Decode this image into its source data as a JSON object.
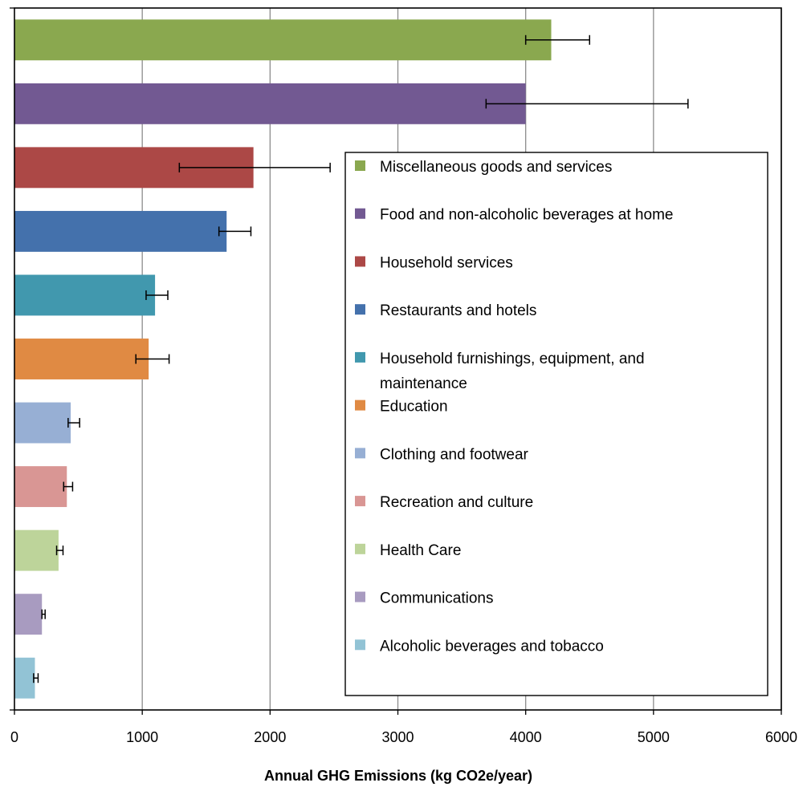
{
  "chart_data": {
    "type": "bar",
    "orientation": "horizontal",
    "title": "",
    "xlabel": "Annual GHG  Emissions  (kg CO2e/year)",
    "ylabel": "",
    "xlim": [
      0,
      6000
    ],
    "xticks": [
      0,
      1000,
      2000,
      3000,
      4000,
      5000,
      6000
    ],
    "grid": "vertical major gridlines",
    "legend_position": "right",
    "categories": [
      {
        "label": "Miscellaneous goods and services",
        "legend_lines": [
          "Miscellaneous goods and services"
        ],
        "value": 4200,
        "err_low": 4000,
        "err_high": 4500,
        "color": "#8aa84f"
      },
      {
        "label": "Food and non-alcoholic beverages at home",
        "legend_lines": [
          "Food and  non-alcoholic beverages at home"
        ],
        "value": 4000,
        "err_low": 3690,
        "err_high": 5270,
        "color": "#725992"
      },
      {
        "label": "Household services",
        "legend_lines": [
          "Household services"
        ],
        "value": 1870,
        "err_low": 1290,
        "err_high": 2470,
        "color": "#ac4846"
      },
      {
        "label": "Restaurants and hotels",
        "legend_lines": [
          "Restaurants  and hotels"
        ],
        "value": 1660,
        "err_low": 1600,
        "err_high": 1850,
        "color": "#4471ac"
      },
      {
        "label": "Household furnishings, equipment, and maintenance",
        "legend_lines": [
          "Household furnishings,  equipment,  and",
          "maintenance"
        ],
        "value": 1100,
        "err_low": 1030,
        "err_high": 1200,
        "color": "#4198ae"
      },
      {
        "label": "Education",
        "legend_lines": [
          "Education"
        ],
        "value": 1050,
        "err_low": 950,
        "err_high": 1210,
        "color": "#e08a43"
      },
      {
        "label": "Clothing and footwear",
        "legend_lines": [
          "Clothing  and footwear"
        ],
        "value": 440,
        "err_low": 420,
        "err_high": 510,
        "color": "#97afd4"
      },
      {
        "label": "Recreation and culture",
        "legend_lines": [
          "Recreation and culture"
        ],
        "value": 410,
        "err_low": 385,
        "err_high": 455,
        "color": "#d99694"
      },
      {
        "label": "Health Care",
        "legend_lines": [
          "Health Care"
        ],
        "value": 345,
        "err_low": 330,
        "err_high": 380,
        "color": "#bdd49a"
      },
      {
        "label": "Communications",
        "legend_lines": [
          "Communications"
        ],
        "value": 215,
        "err_low": 215,
        "err_high": 240,
        "color": "#a89bc0"
      },
      {
        "label": "Alcoholic beverages and tobacco",
        "legend_lines": [
          "Alcoholic beverages and tobacco"
        ],
        "value": 160,
        "err_low": 150,
        "err_high": 185,
        "color": "#92c3d5"
      }
    ]
  }
}
